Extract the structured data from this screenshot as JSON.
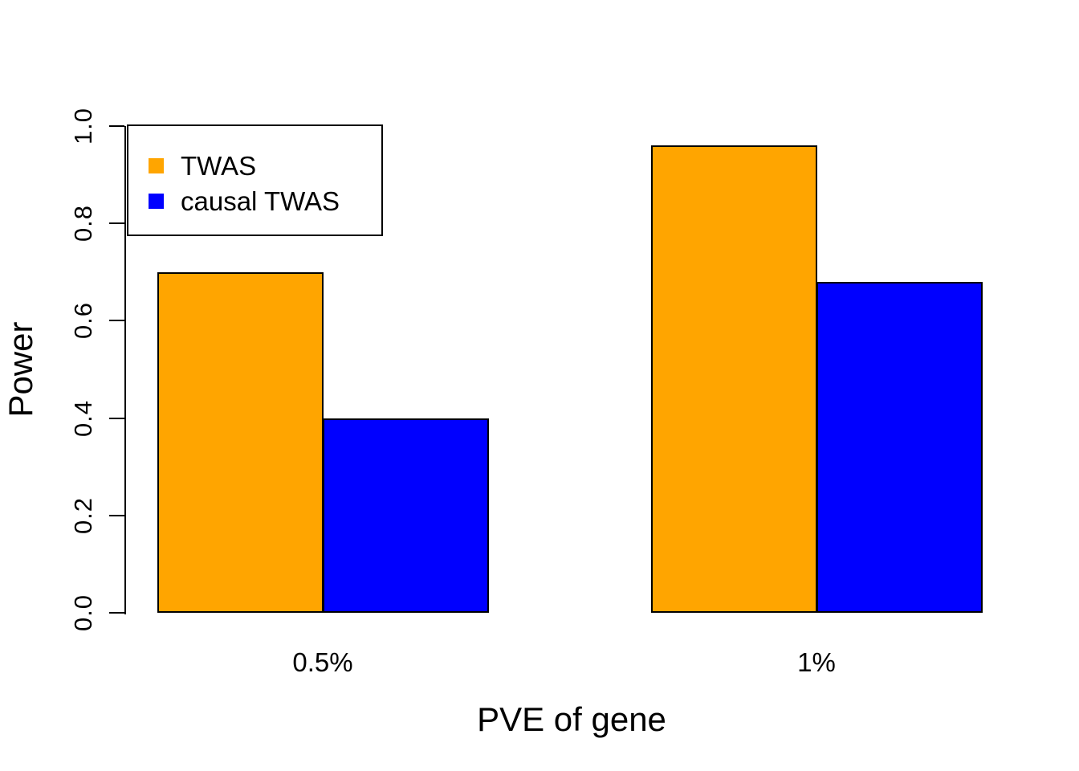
{
  "chart_data": {
    "type": "bar",
    "title": "",
    "xlabel": "PVE of gene",
    "ylabel": "Power",
    "categories": [
      "0.5%",
      "1%"
    ],
    "series": [
      {
        "name": "TWAS",
        "color": "#FFA500",
        "values": [
          0.7,
          0.96
        ]
      },
      {
        "name": "causal TWAS",
        "color": "#0000FF",
        "values": [
          0.4,
          0.68
        ]
      }
    ],
    "ylim": [
      0.0,
      1.0
    ],
    "yticks": [
      "0.0",
      "0.2",
      "0.4",
      "0.6",
      "0.8",
      "1.0"
    ],
    "grid": false,
    "legend_position": "top-left",
    "bar_border_color": "#000000",
    "axis_color": "#000000",
    "background": "#FFFFFF"
  }
}
